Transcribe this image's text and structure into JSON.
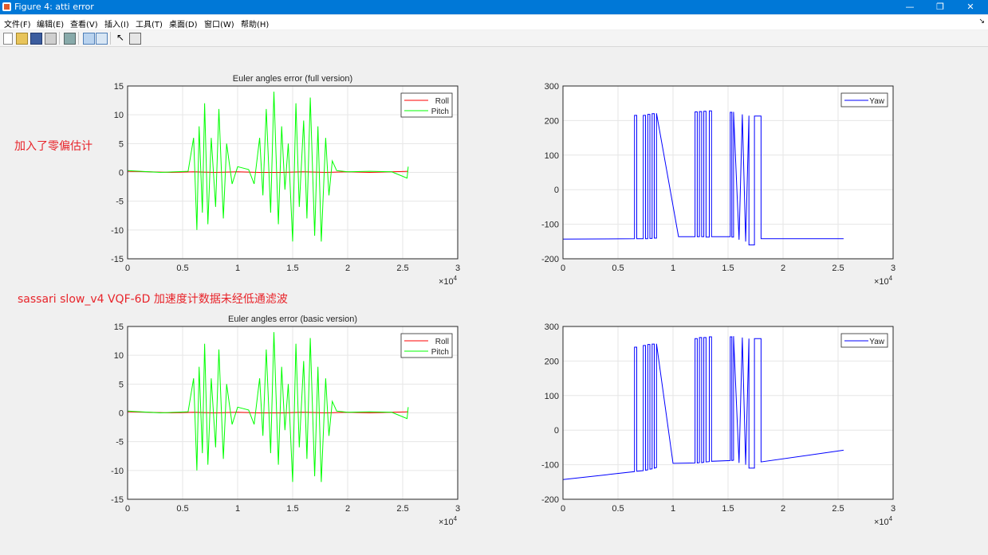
{
  "window": {
    "title": "Figure 4: atti error"
  },
  "menus": [
    "文件(F)",
    "编辑(E)",
    "查看(V)",
    "插入(I)",
    "工具(T)",
    "桌面(D)",
    "窗口(W)",
    "帮助(H)"
  ],
  "toolbar_icons": [
    "new-figure-icon",
    "open-file-icon",
    "save-icon",
    "print-icon",
    "link-plot-icon",
    "insert-colorbar-icon",
    "insert-legend-icon",
    "edit-plot-icon",
    "property-inspector-icon"
  ],
  "annotations": [
    "加入了零偏估计",
    "sassari slow_v4 VQF-6D 加速度计数据未经低通滤波"
  ],
  "colors": {
    "roll": "#ff0000",
    "pitch": "#00ff00",
    "yaw": "#0000ff",
    "titlebar": "#0078d7",
    "annotation": "#e8242a"
  },
  "chart_data": [
    {
      "type": "line",
      "title": "Euler angles error (full version)",
      "xlim": [
        0,
        30000
      ],
      "ylim": [
        -15,
        15
      ],
      "x_ticks": [
        "0",
        "0.5",
        "1",
        "1.5",
        "2",
        "2.5",
        "3"
      ],
      "x_exponent": "×10",
      "x_exponent_power": "4",
      "y_ticks": [
        "15",
        "10",
        "5",
        "0",
        "-5",
        "-10",
        "-15"
      ],
      "grid": true,
      "legend_position": "top-right",
      "series": [
        {
          "name": "Roll",
          "color": "#ff0000",
          "x": [
            0,
            2000,
            4000,
            6000,
            8000,
            10000,
            12000,
            14000,
            16000,
            18000,
            20000,
            22000,
            24000,
            25500
          ],
          "values": [
            0.2,
            0.1,
            0,
            0.1,
            0,
            0.1,
            0,
            0,
            0.1,
            0,
            0.1,
            0,
            0.1,
            0.2
          ]
        },
        {
          "name": "Pitch",
          "color": "#00ff00",
          "x": [
            0,
            3000,
            5500,
            6000,
            6300,
            6500,
            6800,
            7000,
            7300,
            7600,
            8000,
            8300,
            8700,
            9000,
            9500,
            10000,
            11000,
            11500,
            12000,
            12300,
            12600,
            13000,
            13300,
            13700,
            14000,
            14300,
            14600,
            15000,
            15300,
            15600,
            16000,
            16300,
            16600,
            17000,
            17300,
            17600,
            18000,
            18300,
            18600,
            19000,
            20000,
            22000,
            24000,
            25400,
            25500
          ],
          "values": [
            0.3,
            0,
            0.2,
            6,
            -10,
            8,
            -7,
            12,
            -9,
            6,
            -6,
            11,
            -8,
            5,
            -2,
            1,
            0.5,
            -2,
            6,
            -4,
            11,
            -7,
            14,
            -9,
            8,
            -3,
            5,
            -12,
            12,
            -6,
            9,
            -8,
            13,
            -11,
            8,
            -12,
            6,
            -4,
            2,
            0.3,
            0.1,
            0.2,
            0.1,
            -1,
            1
          ]
        }
      ]
    },
    {
      "type": "line",
      "title": "",
      "xlim": [
        0,
        30000
      ],
      "ylim": [
        -200,
        300
      ],
      "x_ticks": [
        "0",
        "0.5",
        "1",
        "1.5",
        "2",
        "2.5",
        "3"
      ],
      "x_exponent": "×10",
      "x_exponent_power": "4",
      "y_ticks": [
        "300",
        "200",
        "100",
        "0",
        "-100",
        "-200"
      ],
      "grid": true,
      "legend_position": "top-right",
      "series": [
        {
          "name": "Yaw",
          "color": "#0000ff",
          "x": [
            0,
            6500,
            6500,
            6700,
            6700,
            7300,
            7300,
            7500,
            7500,
            7700,
            7700,
            7900,
            7900,
            8100,
            8100,
            8300,
            8300,
            8500,
            8500,
            10500,
            12000,
            12000,
            12200,
            12200,
            12400,
            12400,
            12600,
            12600,
            12800,
            12800,
            13000,
            13000,
            13300,
            13300,
            13500,
            13500,
            15200,
            15200,
            15350,
            15350,
            15500,
            15500,
            16000,
            16000,
            16300,
            16300,
            16600,
            16600,
            16900,
            16900,
            17400,
            17400,
            18000,
            18000,
            19000,
            25500
          ],
          "values": [
            -143,
            -142,
            215,
            215,
            -142,
            -142,
            215,
            215,
            -142,
            -142,
            218,
            218,
            -141,
            -141,
            220,
            220,
            -140,
            -140,
            221,
            -136,
            -136,
            225,
            225,
            -136,
            -136,
            226,
            226,
            -136,
            -136,
            227,
            227,
            -137,
            -137,
            228,
            228,
            -136,
            -136,
            224,
            224,
            -137,
            -137,
            225,
            -145,
            -145,
            218,
            218,
            -150,
            -150,
            214,
            -160,
            -160,
            213,
            213,
            -142,
            -142,
            -142
          ]
        }
      ]
    },
    {
      "type": "line",
      "title": "Euler angles error (basic version)",
      "xlim": [
        0,
        30000
      ],
      "ylim": [
        -15,
        15
      ],
      "x_ticks": [
        "0",
        "0.5",
        "1",
        "1.5",
        "2",
        "2.5",
        "3"
      ],
      "x_exponent": "×10",
      "x_exponent_power": "4",
      "y_ticks": [
        "15",
        "10",
        "5",
        "0",
        "-5",
        "-10",
        "-15"
      ],
      "grid": true,
      "legend_position": "top-right",
      "series": [
        {
          "name": "Roll",
          "color": "#ff0000",
          "x": [
            0,
            2000,
            4000,
            6000,
            8000,
            10000,
            12000,
            14000,
            16000,
            18000,
            20000,
            22000,
            24000,
            25500
          ],
          "values": [
            0.2,
            0.1,
            0,
            0.1,
            0,
            0.1,
            0,
            0,
            0.1,
            0,
            0.1,
            0,
            0.1,
            0.2
          ]
        },
        {
          "name": "Pitch",
          "color": "#00ff00",
          "x": [
            0,
            3000,
            5500,
            6000,
            6300,
            6500,
            6800,
            7000,
            7300,
            7600,
            8000,
            8300,
            8700,
            9000,
            9500,
            10000,
            11000,
            11500,
            12000,
            12300,
            12600,
            13000,
            13300,
            13700,
            14000,
            14300,
            14600,
            15000,
            15300,
            15600,
            16000,
            16300,
            16600,
            17000,
            17300,
            17600,
            18000,
            18300,
            18600,
            19000,
            20000,
            22000,
            24000,
            25400,
            25500
          ],
          "values": [
            0.3,
            0,
            0.2,
            6,
            -10,
            8,
            -7,
            12,
            -9,
            6,
            -6,
            11,
            -8,
            5,
            -2,
            1,
            0.5,
            -2,
            6,
            -4,
            11,
            -7,
            14,
            -9,
            8,
            -3,
            5,
            -12,
            12,
            -6,
            9,
            -8,
            13,
            -11,
            8,
            -12,
            6,
            -4,
            2,
            0.3,
            0.1,
            0.2,
            0.1,
            -1,
            1
          ]
        }
      ]
    },
    {
      "type": "line",
      "title": "",
      "xlim": [
        0,
        30000
      ],
      "ylim": [
        -200,
        300
      ],
      "x_ticks": [
        "0",
        "0.5",
        "1",
        "1.5",
        "2",
        "2.5",
        "3"
      ],
      "x_exponent": "×10",
      "x_exponent_power": "4",
      "y_ticks": [
        "300",
        "200",
        "100",
        "0",
        "-100",
        "-200"
      ],
      "grid": true,
      "legend_position": "top-right",
      "series": [
        {
          "name": "Yaw",
          "color": "#0000ff",
          "x": [
            0,
            6500,
            6500,
            6700,
            6700,
            7300,
            7300,
            7500,
            7500,
            7700,
            7700,
            7900,
            7900,
            8100,
            8100,
            8300,
            8300,
            8500,
            8500,
            10000,
            12000,
            12000,
            12200,
            12200,
            12400,
            12400,
            12600,
            12600,
            12800,
            12800,
            13000,
            13000,
            13300,
            13300,
            13500,
            13500,
            15200,
            15200,
            15350,
            15350,
            15500,
            15500,
            16000,
            16000,
            16300,
            16300,
            16600,
            16600,
            16900,
            16900,
            17400,
            17400,
            18000,
            18000,
            25500
          ],
          "values": [
            -143,
            -120,
            240,
            240,
            -119,
            -117,
            245,
            245,
            -116,
            -115,
            248,
            248,
            -113,
            -112,
            249,
            249,
            -110,
            -108,
            250,
            -96,
            -95,
            265,
            265,
            -95,
            -94,
            268,
            268,
            -94,
            -93,
            268,
            268,
            -92,
            -91,
            270,
            270,
            -90,
            -88,
            270,
            270,
            -88,
            -87,
            272,
            -95,
            -95,
            268,
            268,
            -100,
            -100,
            265,
            -110,
            -110,
            265,
            265,
            -92,
            -58
          ]
        }
      ]
    }
  ]
}
